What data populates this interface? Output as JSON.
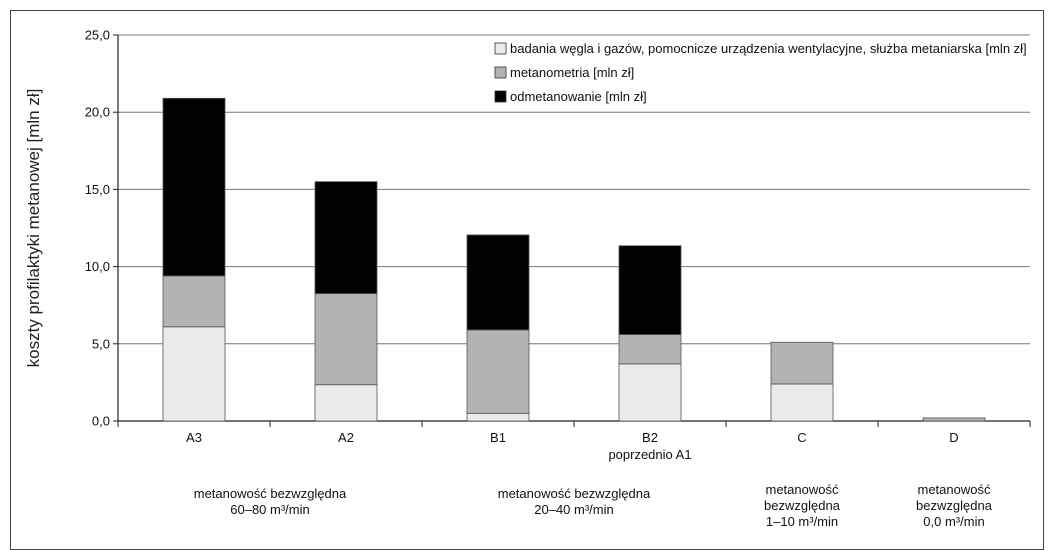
{
  "chart_data": {
    "type": "bar",
    "stacked": true,
    "ylabel": "koszty profilaktyki metanowej [mln zł]",
    "xlabel": "",
    "ylim": [
      0,
      25
    ],
    "y_ticks": [
      "0,0",
      "5,0",
      "10,0",
      "15,0",
      "20,0",
      "25,0"
    ],
    "grid": true,
    "legend_position": "top-right",
    "categories": [
      "A3",
      "A2",
      "B1",
      "B2",
      "C",
      "D"
    ],
    "category_sublabels": [
      "",
      "",
      "",
      "poprzednio A1",
      "",
      ""
    ],
    "series": [
      {
        "name": "badania węgla i gazów, pomocnicze urządzenia wentylacyjne, służba metaniarska [mln zł]",
        "color": "#ebebeb",
        "values": [
          6.1,
          2.35,
          0.5,
          3.7,
          2.4,
          0.0
        ]
      },
      {
        "name": "metanometria [mln zł]",
        "color": "#b3b3b3",
        "values": [
          3.3,
          5.9,
          5.4,
          1.9,
          2.7,
          0.2
        ]
      },
      {
        "name": "odmetanowanie [mln zł]",
        "color": "#000000",
        "values": [
          11.5,
          7.25,
          6.15,
          5.75,
          0.0,
          0.0
        ]
      }
    ],
    "group_labels": [
      {
        "lines": [
          "metanowość bezwzględna",
          "60–80 m³/min"
        ],
        "categories": [
          "A3",
          "A2"
        ]
      },
      {
        "lines": [
          "metanowość  bezwzględna",
          "20–40 m³/min"
        ],
        "categories": [
          "B1",
          "B2"
        ]
      },
      {
        "lines": [
          "metanowość",
          "bezwzględna",
          "1–10 m³/min"
        ],
        "categories": [
          "C"
        ]
      },
      {
        "lines": [
          "metanowość",
          "bezwzględna",
          "0,0 m³/min"
        ],
        "categories": [
          "D"
        ]
      }
    ]
  }
}
